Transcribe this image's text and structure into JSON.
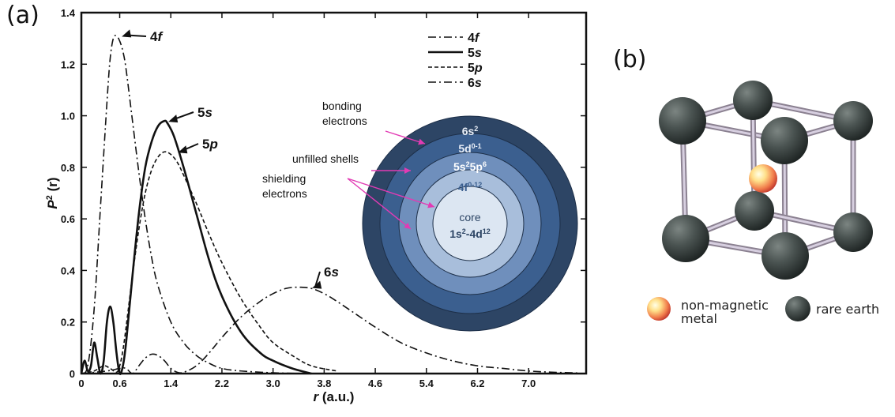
{
  "panels": {
    "a_label": "(a)",
    "b_label": "(b)"
  },
  "chart_data": {
    "type": "line",
    "xlabel_var": "r",
    "xlabel_unit": " (a.u.)",
    "ylabel_p": "P",
    "ylabel_sup": "2",
    "ylabel_r": "(r)",
    "xlim": [
      0,
      7.9
    ],
    "ylim": [
      0,
      1.4
    ],
    "x_ticks": [
      {
        "v": 0,
        "label": "0"
      },
      {
        "v": 0.6,
        "label": "0.6"
      },
      {
        "v": 1.4,
        "label": "1.4"
      },
      {
        "v": 2.2,
        "label": "2.2"
      },
      {
        "v": 3.0,
        "label": "3.0"
      },
      {
        "v": 3.8,
        "label": "3.8"
      },
      {
        "v": 4.6,
        "label": "4.6"
      },
      {
        "v": 5.4,
        "label": "5.4"
      },
      {
        "v": 6.2,
        "label": "6.2"
      },
      {
        "v": 7.0,
        "label": "7.0"
      }
    ],
    "y_ticks": [
      {
        "v": 0,
        "label": "0"
      },
      {
        "v": 0.2,
        "label": "0.2"
      },
      {
        "v": 0.4,
        "label": "0.4"
      },
      {
        "v": 0.6,
        "label": "0.6"
      },
      {
        "v": 0.8,
        "label": "0.8"
      },
      {
        "v": 1.0,
        "label": "1.0"
      },
      {
        "v": 1.2,
        "label": "1.2"
      },
      {
        "v": 1.4,
        "label": "1.4"
      }
    ],
    "legend_position": "top-right",
    "series": [
      {
        "name": "4f",
        "style": "dashdot",
        "x": [
          0,
          0.1,
          0.2,
          0.3,
          0.4,
          0.45,
          0.5,
          0.55,
          0.6,
          0.65,
          0.7,
          0.8,
          0.9,
          1.0,
          1.1,
          1.2,
          1.4,
          1.6,
          1.8,
          2.0,
          2.2,
          2.5,
          3.0,
          3.5
        ],
        "y": [
          0,
          0.03,
          0.25,
          0.65,
          1.05,
          1.22,
          1.3,
          1.31,
          1.29,
          1.25,
          1.18,
          0.98,
          0.78,
          0.6,
          0.45,
          0.34,
          0.2,
          0.12,
          0.07,
          0.04,
          0.02,
          0.01,
          0.003,
          0
        ]
      },
      {
        "name": "5s",
        "style": "solid",
        "x": [
          0,
          0.05,
          0.1,
          0.15,
          0.2,
          0.25,
          0.3,
          0.35,
          0.4,
          0.45,
          0.5,
          0.55,
          0.6,
          0.65,
          0.7,
          0.8,
          0.9,
          1.0,
          1.1,
          1.2,
          1.3,
          1.35,
          1.45,
          1.6,
          1.8,
          2.0,
          2.2,
          2.5,
          2.8,
          3.0,
          3.3,
          3.6
        ],
        "y": [
          0,
          0.05,
          0.01,
          0.03,
          0.12,
          0.06,
          0.0,
          0.05,
          0.2,
          0.26,
          0.2,
          0.08,
          0.0,
          0.03,
          0.12,
          0.38,
          0.62,
          0.8,
          0.9,
          0.96,
          0.98,
          0.97,
          0.92,
          0.8,
          0.62,
          0.44,
          0.3,
          0.16,
          0.08,
          0.05,
          0.02,
          0
        ]
      },
      {
        "name": "5p",
        "style": "dashed",
        "x": [
          0,
          0.2,
          0.35,
          0.45,
          0.55,
          0.6,
          0.65,
          0.7,
          0.8,
          0.9,
          1.0,
          1.1,
          1.2,
          1.3,
          1.4,
          1.5,
          1.6,
          1.8,
          2.0,
          2.2,
          2.5,
          2.8,
          3.0,
          3.3,
          3.6,
          4.0
        ],
        "y": [
          0,
          0.01,
          0.03,
          0.02,
          0.005,
          0.03,
          0.09,
          0.18,
          0.38,
          0.56,
          0.7,
          0.79,
          0.84,
          0.86,
          0.85,
          0.82,
          0.77,
          0.66,
          0.54,
          0.43,
          0.29,
          0.18,
          0.12,
          0.07,
          0.03,
          0.01
        ]
      },
      {
        "name": "6s",
        "style": "dashdot",
        "x": [
          0,
          0.4,
          0.6,
          0.7,
          0.8,
          0.9,
          1.0,
          1.1,
          1.2,
          1.3,
          1.4,
          1.5,
          1.6,
          1.8,
          2.0,
          2.2,
          2.5,
          2.8,
          3.0,
          3.2,
          3.4,
          3.6,
          3.8,
          4.0,
          4.3,
          4.6,
          5.0,
          5.4,
          5.8,
          6.2,
          6.6,
          7.0,
          7.4,
          7.8
        ],
        "y": [
          0,
          0.01,
          0.02,
          0.02,
          0.0,
          0.03,
          0.06,
          0.075,
          0.07,
          0.05,
          0.02,
          0.005,
          0.005,
          0.03,
          0.08,
          0.14,
          0.22,
          0.28,
          0.31,
          0.33,
          0.335,
          0.33,
          0.31,
          0.28,
          0.23,
          0.18,
          0.12,
          0.08,
          0.05,
          0.03,
          0.02,
          0.01,
          0.005,
          0.002
        ]
      }
    ],
    "curve_labels": [
      {
        "orbital": "4",
        "sub": "f"
      },
      {
        "orbital": "5",
        "sub": "s"
      },
      {
        "orbital": "5",
        "sub": "p"
      },
      {
        "orbital": "6",
        "sub": "s"
      }
    ],
    "legend": [
      {
        "orbital": "4",
        "sub": "f"
      },
      {
        "orbital": "5",
        "sub": "s"
      },
      {
        "orbital": "5",
        "sub": "p"
      },
      {
        "orbital": "6",
        "sub": "s"
      }
    ]
  },
  "shells": {
    "rings": [
      {
        "text": "6s",
        "sup": "2",
        "color": "#2d4565",
        "text_color": "#e8eef7"
      },
      {
        "text": "5d",
        "sup": "0-1",
        "color": "#3b5f8f",
        "text_color": "#e8eef7"
      },
      {
        "text": "5s",
        "sup": "2",
        "text2": "5p",
        "sup2": "6",
        "color": "#6f8fbc",
        "text_color": "#ffffff"
      },
      {
        "text": "4f",
        "sup": "0-12",
        "color": "#a8bedb",
        "text_color": "#3b5f8f"
      },
      {
        "text": "core",
        "color": "#dce6f2",
        "text_color": "#2d4565"
      }
    ],
    "core_formula": {
      "a": "1s",
      "a_sup": "2",
      "b": "-4d",
      "b_sup": "12"
    },
    "annotations": [
      {
        "line1": "bonding",
        "line2": "electrons"
      },
      {
        "line1": "unfilled shells",
        "line2": ""
      },
      {
        "line1": "shielding",
        "line2": "electrons"
      }
    ],
    "arrow_color": "#e23bb4"
  },
  "crystal_legend": {
    "metal_line1": "non-magnetic",
    "metal_line2": "metal",
    "rare_earth": "rare earth"
  }
}
